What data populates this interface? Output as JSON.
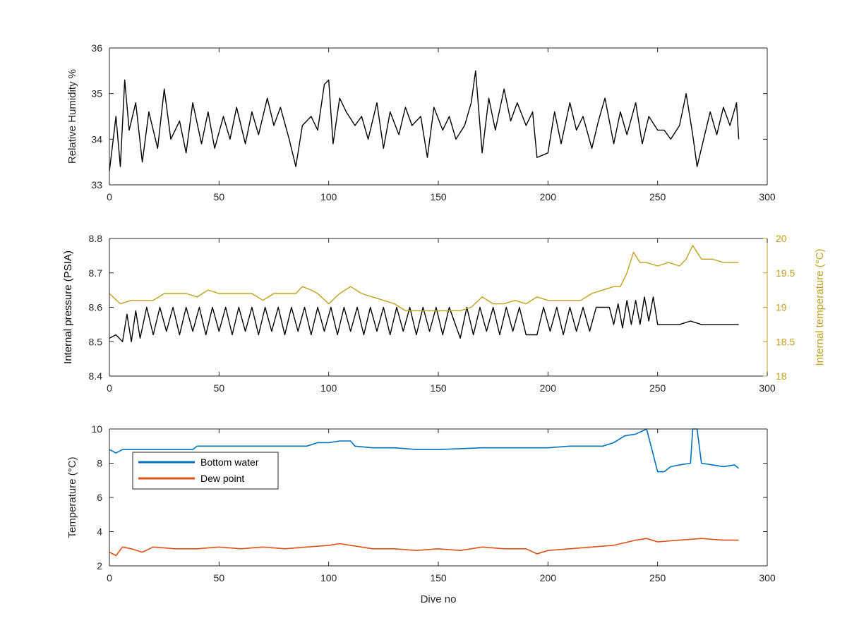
{
  "chart_data": [
    {
      "type": "line",
      "xlabel": "",
      "ylabel": "Relative Humidity %",
      "xlim": [
        0,
        300
      ],
      "ylim": [
        33,
        36
      ],
      "xticks": [
        0,
        50,
        100,
        150,
        200,
        250,
        300
      ],
      "yticks": [
        33,
        34,
        35,
        36
      ],
      "grid": false,
      "series": [
        {
          "color": "#000000",
          "x": [
            0,
            3,
            5,
            7,
            9,
            12,
            15,
            18,
            22,
            25,
            28,
            32,
            35,
            38,
            42,
            45,
            48,
            52,
            55,
            58,
            62,
            65,
            68,
            72,
            75,
            78,
            82,
            85,
            88,
            92,
            95,
            98,
            100,
            102,
            105,
            108,
            112,
            115,
            118,
            122,
            125,
            128,
            132,
            135,
            138,
            142,
            145,
            148,
            152,
            155,
            158,
            162,
            165,
            167,
            170,
            173,
            176,
            180,
            183,
            186,
            190,
            193,
            195,
            200,
            203,
            206,
            210,
            213,
            216,
            220,
            223,
            226,
            230,
            233,
            236,
            240,
            243,
            246,
            250,
            253,
            256,
            260,
            263,
            266,
            268,
            271,
            274,
            277,
            280,
            283,
            286,
            287
          ],
          "y": [
            33.3,
            34.5,
            33.4,
            35.3,
            34.2,
            34.8,
            33.5,
            34.6,
            33.8,
            35.1,
            34.0,
            34.4,
            33.7,
            34.8,
            33.9,
            34.6,
            33.8,
            34.5,
            34.0,
            34.7,
            33.9,
            34.6,
            34.1,
            34.9,
            34.3,
            34.7,
            34.0,
            33.4,
            34.3,
            34.5,
            34.2,
            35.2,
            35.3,
            33.9,
            34.9,
            34.6,
            34.3,
            34.5,
            34.0,
            34.8,
            33.8,
            34.6,
            34.1,
            34.7,
            34.3,
            34.5,
            33.6,
            34.7,
            34.2,
            34.5,
            34.0,
            34.3,
            34.8,
            35.5,
            33.7,
            34.9,
            34.2,
            35.1,
            34.4,
            34.8,
            34.3,
            34.6,
            33.6,
            33.7,
            34.6,
            33.9,
            34.8,
            34.2,
            34.5,
            33.8,
            34.4,
            34.9,
            33.9,
            34.6,
            34.1,
            34.8,
            33.9,
            34.5,
            34.2,
            34.2,
            34.0,
            34.3,
            35.0,
            34.1,
            33.4,
            34.0,
            34.6,
            34.1,
            34.7,
            34.3,
            34.8,
            34.0
          ]
        }
      ]
    },
    {
      "type": "line",
      "xlabel": "",
      "ylabel": "Internal pressure (PSIA)",
      "y2label": "Internal temperature (°C)",
      "xlim": [
        0,
        300
      ],
      "ylim": [
        8.4,
        8.8
      ],
      "y2lim": [
        18,
        20
      ],
      "xticks": [
        0,
        50,
        100,
        150,
        200,
        250,
        300
      ],
      "yticks": [
        8.4,
        8.5,
        8.6,
        8.7,
        8.8
      ],
      "y2ticks": [
        18,
        18.5,
        19,
        19.5,
        20
      ],
      "grid": false,
      "series": [
        {
          "color": "#000000",
          "axis": "left",
          "x": [
            0,
            3,
            6,
            8,
            10,
            12,
            14,
            17,
            20,
            23,
            26,
            29,
            32,
            35,
            38,
            41,
            44,
            47,
            50,
            53,
            56,
            59,
            62,
            65,
            68,
            71,
            74,
            77,
            80,
            83,
            86,
            89,
            92,
            95,
            98,
            101,
            104,
            107,
            110,
            113,
            116,
            119,
            122,
            125,
            128,
            131,
            134,
            137,
            140,
            143,
            146,
            149,
            152,
            155,
            160,
            163,
            166,
            169,
            172,
            175,
            178,
            181,
            184,
            187,
            190,
            195,
            198,
            201,
            204,
            207,
            210,
            213,
            216,
            219,
            222,
            225,
            228,
            230,
            232,
            234,
            236,
            238,
            240,
            242,
            244,
            246,
            248,
            250,
            255,
            260,
            265,
            270,
            275,
            280,
            285,
            287
          ],
          "y": [
            8.51,
            8.52,
            8.5,
            8.58,
            8.5,
            8.59,
            8.51,
            8.6,
            8.52,
            8.6,
            8.53,
            8.6,
            8.52,
            8.6,
            8.53,
            8.6,
            8.52,
            8.6,
            8.53,
            8.6,
            8.52,
            8.6,
            8.53,
            8.6,
            8.52,
            8.6,
            8.53,
            8.6,
            8.52,
            8.6,
            8.53,
            8.6,
            8.52,
            8.6,
            8.53,
            8.6,
            8.52,
            8.6,
            8.53,
            8.6,
            8.52,
            8.6,
            8.53,
            8.6,
            8.52,
            8.6,
            8.53,
            8.6,
            8.52,
            8.6,
            8.53,
            8.6,
            8.52,
            8.6,
            8.51,
            8.6,
            8.52,
            8.6,
            8.53,
            8.6,
            8.52,
            8.6,
            8.53,
            8.6,
            8.52,
            8.52,
            8.6,
            8.53,
            8.6,
            8.52,
            8.6,
            8.53,
            8.6,
            8.53,
            8.6,
            8.6,
            8.6,
            8.55,
            8.61,
            8.54,
            8.62,
            8.55,
            8.62,
            8.55,
            8.63,
            8.56,
            8.63,
            8.55,
            8.55,
            8.55,
            8.56,
            8.55,
            8.55,
            8.55,
            8.55,
            8.55
          ]
        },
        {
          "color": "#C0A020",
          "axis": "right",
          "x": [
            0,
            5,
            10,
            15,
            20,
            25,
            30,
            35,
            40,
            45,
            50,
            55,
            60,
            65,
            70,
            75,
            80,
            85,
            88,
            92,
            95,
            100,
            105,
            110,
            115,
            120,
            125,
            130,
            135,
            140,
            145,
            150,
            155,
            160,
            165,
            170,
            175,
            180,
            185,
            190,
            195,
            200,
            205,
            210,
            215,
            220,
            225,
            230,
            233,
            236,
            239,
            242,
            245,
            250,
            255,
            260,
            263,
            266,
            270,
            275,
            280,
            285,
            287
          ],
          "y": [
            19.2,
            19.05,
            19.1,
            19.1,
            19.1,
            19.2,
            19.2,
            19.2,
            19.15,
            19.25,
            19.2,
            19.2,
            19.2,
            19.2,
            19.1,
            19.2,
            19.2,
            19.2,
            19.3,
            19.25,
            19.2,
            19.05,
            19.2,
            19.3,
            19.2,
            19.15,
            19.1,
            19.05,
            18.95,
            18.95,
            18.95,
            18.95,
            18.95,
            18.95,
            19.0,
            19.15,
            19.05,
            19.05,
            19.1,
            19.05,
            19.15,
            19.1,
            19.1,
            19.1,
            19.1,
            19.2,
            19.25,
            19.3,
            19.3,
            19.5,
            19.8,
            19.65,
            19.65,
            19.6,
            19.65,
            19.6,
            19.7,
            19.9,
            19.7,
            19.7,
            19.65,
            19.65,
            19.65
          ]
        }
      ]
    },
    {
      "type": "line",
      "xlabel": "Dive no",
      "ylabel": "Temperature (°C)",
      "xlim": [
        0,
        300
      ],
      "ylim": [
        2,
        10
      ],
      "xticks": [
        0,
        50,
        100,
        150,
        200,
        250,
        300
      ],
      "yticks": [
        2,
        4,
        6,
        8,
        10
      ],
      "grid": false,
      "legend_position": "top-left",
      "series": [
        {
          "name": "Bottom water",
          "color": "#0072BD",
          "x": [
            0,
            3,
            6,
            10,
            20,
            30,
            38,
            40,
            50,
            60,
            70,
            80,
            90,
            95,
            100,
            105,
            110,
            112,
            120,
            130,
            140,
            150,
            160,
            170,
            180,
            190,
            200,
            210,
            215,
            225,
            230,
            235,
            240,
            245,
            248,
            250,
            253,
            256,
            260,
            265,
            266,
            268,
            270,
            275,
            280,
            285,
            287
          ],
          "y": [
            8.8,
            8.6,
            8.8,
            8.8,
            8.8,
            8.8,
            8.8,
            9.0,
            9.0,
            9.0,
            9.0,
            9.0,
            9.0,
            9.2,
            9.2,
            9.3,
            9.3,
            9.0,
            8.9,
            8.9,
            8.8,
            8.8,
            8.85,
            8.9,
            8.9,
            8.9,
            8.9,
            9.0,
            9.0,
            9.0,
            9.2,
            9.6,
            9.7,
            10.0,
            8.5,
            7.5,
            7.5,
            7.8,
            7.9,
            8.0,
            10.0,
            10.0,
            8.0,
            7.9,
            7.8,
            7.9,
            7.7
          ]
        },
        {
          "name": "Dew point",
          "color": "#D95319",
          "x": [
            0,
            3,
            6,
            10,
            15,
            20,
            30,
            40,
            50,
            60,
            70,
            80,
            90,
            100,
            105,
            110,
            120,
            130,
            140,
            150,
            160,
            170,
            180,
            190,
            195,
            200,
            210,
            220,
            230,
            240,
            245,
            250,
            260,
            270,
            280,
            287
          ],
          "y": [
            2.8,
            2.6,
            3.1,
            3.0,
            2.8,
            3.1,
            3.0,
            3.0,
            3.1,
            3.0,
            3.1,
            3.0,
            3.1,
            3.2,
            3.3,
            3.2,
            3.0,
            3.0,
            2.9,
            3.0,
            2.9,
            3.1,
            3.0,
            3.0,
            2.7,
            2.9,
            3.0,
            3.1,
            3.2,
            3.5,
            3.6,
            3.4,
            3.5,
            3.6,
            3.5,
            3.5
          ]
        }
      ]
    }
  ]
}
